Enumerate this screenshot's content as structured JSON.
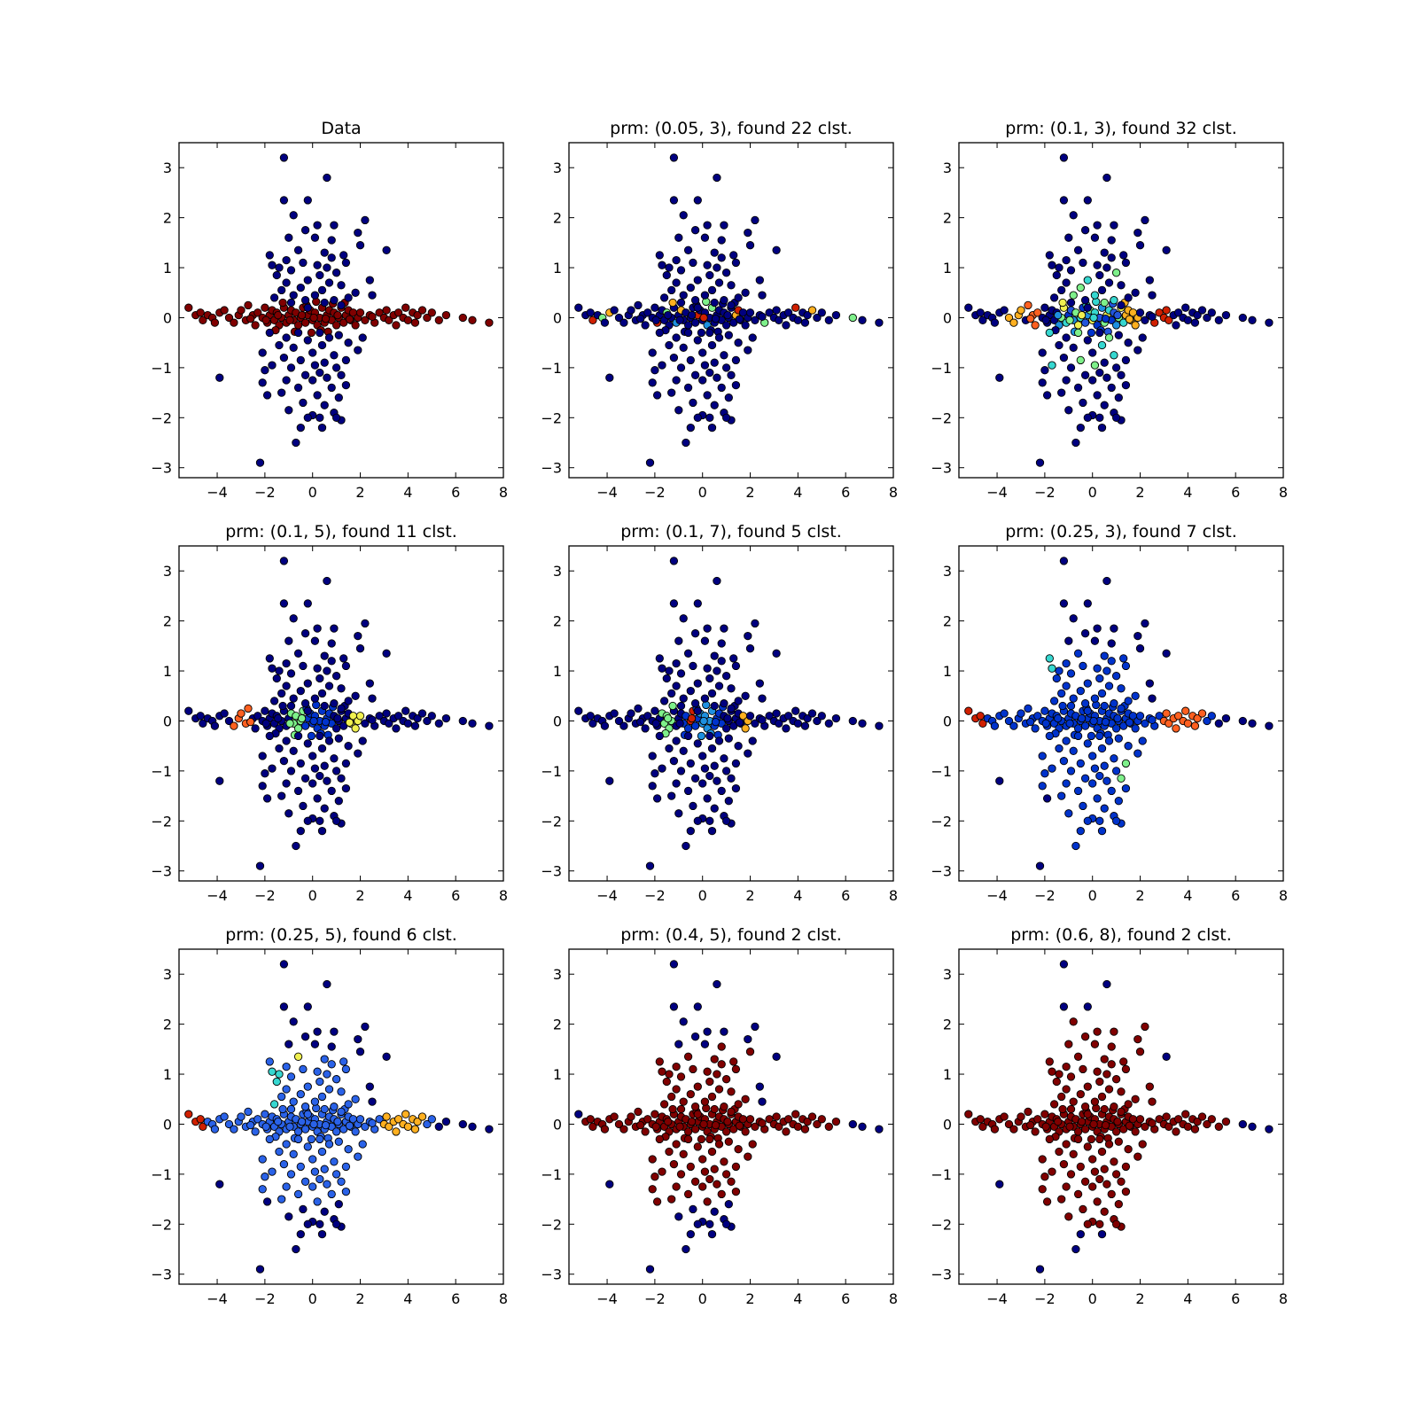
{
  "figure": {
    "colors": {
      "c0": "#000080",
      "c1": "#0033cc",
      "c2": "#2a62e8",
      "c3": "#1e90e0",
      "c4": "#36d7d0",
      "c5": "#7ef08a",
      "c6": "#f0f050",
      "c7": "#ffb020",
      "c8": "#ff6020",
      "c9": "#d02000",
      "c10": "#800000"
    }
  },
  "chart_data": [
    {
      "type": "scatter",
      "title": "Data",
      "xlim": [
        -5.6,
        8
      ],
      "ylim": [
        -3.2,
        3.5
      ],
      "xticks": [
        "−4",
        "−2",
        "0",
        "2",
        "4",
        "6",
        "8"
      ],
      "xtick_values": [
        -4,
        -2,
        0,
        2,
        4,
        6,
        8
      ],
      "yticks": [
        "−3",
        "−2",
        "−1",
        "0",
        "1",
        "2",
        "3"
      ],
      "ytick_values": [
        -3,
        -2,
        -1,
        0,
        1,
        2,
        3
      ],
      "scheme": "data"
    },
    {
      "type": "scatter",
      "title": "prm: (0.05, 3), found 22 clst.",
      "xlim": [
        -5.6,
        8
      ],
      "ylim": [
        -3.2,
        3.5
      ],
      "xticks": [
        "−4",
        "−2",
        "0",
        "2",
        "4",
        "6",
        "8"
      ],
      "xtick_values": [
        -4,
        -2,
        0,
        2,
        4,
        6,
        8
      ],
      "yticks": [
        "−3",
        "−2",
        "−1",
        "0",
        "1",
        "2",
        "3"
      ],
      "ytick_values": [
        -3,
        -2,
        -1,
        0,
        1,
        2,
        3
      ],
      "scheme": "p005_3"
    },
    {
      "type": "scatter",
      "title": "prm: (0.1, 3), found 32 clst.",
      "xlim": [
        -5.6,
        8
      ],
      "ylim": [
        -3.2,
        3.5
      ],
      "xticks": [
        "−4",
        "−2",
        "0",
        "2",
        "4",
        "6",
        "8"
      ],
      "xtick_values": [
        -4,
        -2,
        0,
        2,
        4,
        6,
        8
      ],
      "yticks": [
        "−3",
        "−2",
        "−1",
        "0",
        "1",
        "2",
        "3"
      ],
      "ytick_values": [
        -3,
        -2,
        -1,
        0,
        1,
        2,
        3
      ],
      "scheme": "p01_3"
    },
    {
      "type": "scatter",
      "title": "prm: (0.1, 5), found 11 clst.",
      "xlim": [
        -5.6,
        8
      ],
      "ylim": [
        -3.2,
        3.5
      ],
      "xticks": [
        "−4",
        "−2",
        "0",
        "2",
        "4",
        "6",
        "8"
      ],
      "xtick_values": [
        -4,
        -2,
        0,
        2,
        4,
        6,
        8
      ],
      "yticks": [
        "−3",
        "−2",
        "−1",
        "0",
        "1",
        "2",
        "3"
      ],
      "ytick_values": [
        -3,
        -2,
        -1,
        0,
        1,
        2,
        3
      ],
      "scheme": "p01_5"
    },
    {
      "type": "scatter",
      "title": "prm: (0.1, 7), found 5 clst.",
      "xlim": [
        -5.6,
        8
      ],
      "ylim": [
        -3.2,
        3.5
      ],
      "xticks": [
        "−4",
        "−2",
        "0",
        "2",
        "4",
        "6",
        "8"
      ],
      "xtick_values": [
        -4,
        -2,
        0,
        2,
        4,
        6,
        8
      ],
      "yticks": [
        "−3",
        "−2",
        "−1",
        "0",
        "1",
        "2",
        "3"
      ],
      "ytick_values": [
        -3,
        -2,
        -1,
        0,
        1,
        2,
        3
      ],
      "scheme": "p01_7"
    },
    {
      "type": "scatter",
      "title": "prm: (0.25, 3), found 7 clst.",
      "xlim": [
        -5.6,
        8
      ],
      "ylim": [
        -3.2,
        3.5
      ],
      "xticks": [
        "−4",
        "−2",
        "0",
        "2",
        "4",
        "6",
        "8"
      ],
      "xtick_values": [
        -4,
        -2,
        0,
        2,
        4,
        6,
        8
      ],
      "yticks": [
        "−3",
        "−2",
        "−1",
        "0",
        "1",
        "2",
        "3"
      ],
      "ytick_values": [
        -3,
        -2,
        -1,
        0,
        1,
        2,
        3
      ],
      "scheme": "p025_3"
    },
    {
      "type": "scatter",
      "title": "prm: (0.25, 5), found 6 clst.",
      "xlim": [
        -5.6,
        8
      ],
      "ylim": [
        -3.2,
        3.5
      ],
      "xticks": [
        "−4",
        "−2",
        "0",
        "2",
        "4",
        "6",
        "8"
      ],
      "xtick_values": [
        -4,
        -2,
        0,
        2,
        4,
        6,
        8
      ],
      "yticks": [
        "−3",
        "−2",
        "−1",
        "0",
        "1",
        "2",
        "3"
      ],
      "ytick_values": [
        -3,
        -2,
        -1,
        0,
        1,
        2,
        3
      ],
      "scheme": "p025_5"
    },
    {
      "type": "scatter",
      "title": "prm: (0.4, 5), found 2 clst.",
      "xlim": [
        -5.6,
        8
      ],
      "ylim": [
        -3.2,
        3.5
      ],
      "xticks": [
        "−4",
        "−2",
        "0",
        "2",
        "4",
        "6",
        "8"
      ],
      "xtick_values": [
        -4,
        -2,
        0,
        2,
        4,
        6,
        8
      ],
      "yticks": [
        "−3",
        "−2",
        "−1",
        "0",
        "1",
        "2",
        "3"
      ],
      "ytick_values": [
        -3,
        -2,
        -1,
        0,
        1,
        2,
        3
      ],
      "scheme": "p04_5"
    },
    {
      "type": "scatter",
      "title": "prm: (0.6, 8), found 2 clst.",
      "xlim": [
        -5.6,
        8
      ],
      "ylim": [
        -3.2,
        3.5
      ],
      "xticks": [
        "−4",
        "−2",
        "0",
        "2",
        "4",
        "6",
        "8"
      ],
      "xtick_values": [
        -4,
        -2,
        0,
        2,
        4,
        6,
        8
      ],
      "yticks": [
        "−3",
        "−2",
        "−1",
        "0",
        "1",
        "2",
        "3"
      ],
      "ytick_values": [
        -3,
        -2,
        -1,
        0,
        1,
        2,
        3
      ],
      "scheme": "p06_8"
    }
  ],
  "points": {
    "vertical": [
      [
        -1.2,
        3.2
      ],
      [
        0.6,
        2.8
      ],
      [
        -1.2,
        2.35
      ],
      [
        -0.2,
        2.35
      ],
      [
        -0.8,
        2.05
      ],
      [
        0.2,
        1.85
      ],
      [
        0.9,
        1.85
      ],
      [
        2.2,
        1.95
      ],
      [
        -0.3,
        1.75
      ],
      [
        1.9,
        1.7
      ],
      [
        0.1,
        1.6
      ],
      [
        -1.0,
        1.6
      ],
      [
        0.8,
        1.55
      ],
      [
        2.0,
        1.45
      ],
      [
        3.1,
        1.35
      ],
      [
        -0.6,
        1.35
      ],
      [
        0.5,
        1.3
      ],
      [
        1.3,
        1.25
      ],
      [
        -1.8,
        1.25
      ],
      [
        0.8,
        1.2
      ],
      [
        -1.1,
        1.15
      ],
      [
        1.4,
        1.1
      ],
      [
        -0.4,
        1.1
      ],
      [
        0.2,
        1.05
      ],
      [
        -1.7,
        1.05
      ],
      [
        -1.4,
        1.0
      ],
      [
        0.6,
        1.0
      ],
      [
        -0.9,
        0.95
      ],
      [
        1.0,
        0.9
      ],
      [
        -1.5,
        0.85
      ],
      [
        0.3,
        0.85
      ],
      [
        -0.2,
        0.75
      ],
      [
        2.4,
        0.75
      ],
      [
        -1.1,
        0.7
      ],
      [
        0.7,
        0.7
      ],
      [
        1.2,
        0.65
      ],
      [
        -0.5,
        0.6
      ],
      [
        -1.3,
        0.55
      ],
      [
        0.4,
        0.55
      ],
      [
        1.8,
        0.5
      ],
      [
        -0.8,
        0.45
      ],
      [
        0.1,
        0.45
      ],
      [
        2.5,
        0.45
      ],
      [
        1.5,
        0.4
      ],
      [
        -1.6,
        0.4
      ],
      [
        -0.3,
        0.35
      ],
      [
        0.9,
        0.35
      ],
      [
        -0.9,
        0.3
      ],
      [
        0.5,
        0.3
      ],
      [
        1.2,
        0.25
      ],
      [
        -0.2,
        0.2
      ],
      [
        -1.8,
        -0.3
      ],
      [
        -0.6,
        -0.3
      ],
      [
        0.3,
        -0.3
      ],
      [
        1.1,
        -0.35
      ],
      [
        -1.1,
        -0.4
      ],
      [
        0.7,
        -0.4
      ],
      [
        2.1,
        -0.4
      ],
      [
        -0.2,
        -0.45
      ],
      [
        1.5,
        -0.5
      ],
      [
        -1.4,
        -0.55
      ],
      [
        0.4,
        -0.55
      ],
      [
        -0.8,
        -0.6
      ],
      [
        1.9,
        -0.65
      ],
      [
        -2.1,
        -0.7
      ],
      [
        0.0,
        -0.7
      ],
      [
        0.9,
        -0.75
      ],
      [
        -1.2,
        -0.8
      ],
      [
        -0.5,
        -0.85
      ],
      [
        1.4,
        -0.85
      ],
      [
        0.5,
        -0.9
      ],
      [
        -1.7,
        -0.95
      ],
      [
        0.1,
        -0.95
      ],
      [
        -0.9,
        -1.0
      ],
      [
        1.0,
        -1.0
      ],
      [
        -2.0,
        -1.05
      ],
      [
        0.3,
        -1.1
      ],
      [
        -0.3,
        -1.15
      ],
      [
        1.2,
        -1.15
      ],
      [
        -3.9,
        -1.2
      ],
      [
        0.6,
        -1.2
      ],
      [
        -1.1,
        -1.25
      ],
      [
        0.0,
        -1.25
      ],
      [
        -2.1,
        -1.3
      ],
      [
        1.4,
        -1.35
      ],
      [
        -0.6,
        -1.4
      ],
      [
        0.8,
        -1.4
      ],
      [
        -1.3,
        -1.5
      ],
      [
        -1.9,
        -1.55
      ],
      [
        0.2,
        -1.55
      ],
      [
        1.1,
        -1.6
      ],
      [
        -0.4,
        -1.7
      ],
      [
        0.5,
        -1.75
      ],
      [
        -1.0,
        -1.85
      ],
      [
        0.9,
        -1.9
      ],
      [
        0.0,
        -1.95
      ],
      [
        -0.2,
        -2.0
      ],
      [
        1.2,
        -2.05
      ],
      [
        -0.5,
        -2.2
      ],
      [
        1.0,
        -2.0
      ],
      [
        -0.7,
        -2.5
      ],
      [
        -2.2,
        -2.9
      ],
      [
        0.3,
        -2.0
      ],
      [
        0.4,
        -2.2
      ]
    ],
    "horizontal": [
      [
        -5.2,
        0.2
      ],
      [
        -4.9,
        0.05
      ],
      [
        -4.7,
        0.1
      ],
      [
        -4.6,
        -0.05
      ],
      [
        -4.4,
        0.05
      ],
      [
        -4.2,
        0.0
      ],
      [
        -4.1,
        -0.1
      ],
      [
        -3.9,
        0.1
      ],
      [
        -3.7,
        0.15
      ],
      [
        -3.5,
        0.0
      ],
      [
        -3.3,
        -0.1
      ],
      [
        -3.1,
        0.05
      ],
      [
        -3.0,
        0.15
      ],
      [
        -2.8,
        -0.05
      ],
      [
        -2.7,
        0.25
      ],
      [
        -2.5,
        0.05
      ],
      [
        -2.4,
        -0.15
      ],
      [
        -2.3,
        0.1
      ],
      [
        -2.1,
        0.0
      ],
      [
        -2.0,
        0.2
      ],
      [
        -1.9,
        -0.1
      ],
      [
        -1.8,
        0.05
      ],
      [
        -1.7,
        0.15
      ],
      [
        -1.6,
        -0.05
      ],
      [
        -1.5,
        0.1
      ],
      [
        -1.4,
        -0.15
      ],
      [
        -1.3,
        0.0
      ],
      [
        -1.2,
        0.2
      ],
      [
        -1.1,
        -0.1
      ],
      [
        -1.0,
        0.05
      ],
      [
        -0.9,
        0.15
      ],
      [
        -0.8,
        -0.05
      ],
      [
        -0.7,
        0.1
      ],
      [
        -0.6,
        -0.15
      ],
      [
        -0.5,
        0.0
      ],
      [
        -0.4,
        0.2
      ],
      [
        -0.3,
        -0.1
      ],
      [
        -0.2,
        0.05
      ],
      [
        -0.1,
        0.15
      ],
      [
        0.0,
        -0.05
      ],
      [
        0.1,
        0.1
      ],
      [
        0.2,
        -0.15
      ],
      [
        0.3,
        0.0
      ],
      [
        0.4,
        0.2
      ],
      [
        0.5,
        -0.1
      ],
      [
        0.6,
        0.05
      ],
      [
        0.7,
        0.15
      ],
      [
        0.8,
        -0.05
      ],
      [
        0.9,
        0.1
      ],
      [
        1.0,
        -0.15
      ],
      [
        1.1,
        0.0
      ],
      [
        1.2,
        0.2
      ],
      [
        1.3,
        -0.1
      ],
      [
        1.4,
        0.05
      ],
      [
        1.5,
        0.15
      ],
      [
        1.6,
        -0.05
      ],
      [
        1.7,
        0.1
      ],
      [
        1.8,
        -0.15
      ],
      [
        1.9,
        0.0
      ],
      [
        2.0,
        0.1
      ],
      [
        2.2,
        -0.05
      ],
      [
        2.4,
        0.05
      ],
      [
        2.6,
        -0.1
      ],
      [
        2.8,
        0.1
      ],
      [
        3.0,
        0.0
      ],
      [
        3.1,
        0.15
      ],
      [
        3.2,
        -0.05
      ],
      [
        3.4,
        0.05
      ],
      [
        3.5,
        -0.15
      ],
      [
        3.6,
        0.1
      ],
      [
        3.8,
        0.0
      ],
      [
        3.9,
        0.2
      ],
      [
        4.0,
        -0.05
      ],
      [
        4.2,
        0.1
      ],
      [
        4.3,
        -0.1
      ],
      [
        4.4,
        0.05
      ],
      [
        4.6,
        0.15
      ],
      [
        4.8,
        0.0
      ],
      [
        5.0,
        0.1
      ],
      [
        5.3,
        -0.05
      ],
      [
        5.6,
        0.05
      ],
      [
        6.3,
        0.0
      ],
      [
        6.7,
        -0.05
      ],
      [
        7.4,
        -0.1
      ],
      [
        -1.95,
        -0.05
      ],
      [
        -1.45,
        0.05
      ],
      [
        -0.95,
        -0.05
      ],
      [
        -0.45,
        0.05
      ],
      [
        0.05,
        0.0
      ],
      [
        0.55,
        -0.02
      ],
      [
        1.05,
        0.05
      ],
      [
        1.55,
        -0.03
      ],
      [
        -2.6,
        -0.02
      ],
      [
        2.5,
        0.02
      ],
      [
        -0.25,
        0.25
      ],
      [
        0.35,
        -0.25
      ],
      [
        0.85,
        0.28
      ],
      [
        -0.75,
        -0.28
      ],
      [
        1.35,
        0.3
      ],
      [
        -1.25,
        0.3
      ],
      [
        0.15,
        0.32
      ],
      [
        -0.05,
        -0.3
      ],
      [
        0.65,
        -0.28
      ],
      [
        -1.55,
        -0.25
      ]
    ]
  }
}
